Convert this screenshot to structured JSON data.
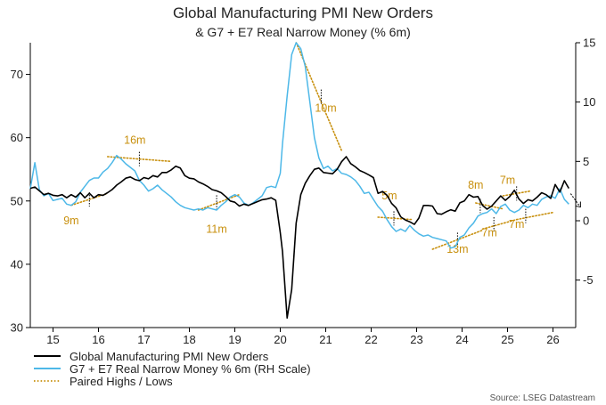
{
  "chart_data": {
    "type": "line",
    "title": "Global Manufacturing PMI New Orders",
    "subtitle": "& G7 + E7 Real Narrow Money (% 6m)",
    "source": "Source: LSEG Datastream",
    "x_axis": {
      "range": [
        2014.5,
        2026.5
      ],
      "tick_labels": [
        "15",
        "16",
        "17",
        "18",
        "19",
        "20",
        "21",
        "22",
        "23",
        "24",
        "25",
        "26"
      ],
      "tick_values": [
        2015,
        2016,
        2017,
        2018,
        2019,
        2020,
        2021,
        2022,
        2023,
        2024,
        2025,
        2026
      ]
    },
    "y_left": {
      "range": [
        30,
        75
      ],
      "ticks": [
        30,
        40,
        50,
        60,
        70
      ]
    },
    "y_right": {
      "range": [
        -9,
        15
      ],
      "ticks": [
        -5,
        0,
        5,
        10,
        15
      ]
    },
    "legend_position": "bottom-left",
    "series": [
      {
        "name": "Global Manufacturing PMI New Orders",
        "axis": "left",
        "color": "#000000",
        "style": "solid",
        "points": [
          [
            2014.5,
            52.0
          ],
          [
            2014.6,
            52.2
          ],
          [
            2014.7,
            51.6
          ],
          [
            2014.8,
            51.0
          ],
          [
            2014.9,
            51.2
          ],
          [
            2015.0,
            50.9
          ],
          [
            2015.1,
            50.8
          ],
          [
            2015.2,
            51.0
          ],
          [
            2015.3,
            50.5
          ],
          [
            2015.4,
            51.0
          ],
          [
            2015.5,
            50.6
          ],
          [
            2015.6,
            51.3
          ],
          [
            2015.7,
            50.5
          ],
          [
            2015.8,
            51.2
          ],
          [
            2015.9,
            50.5
          ],
          [
            2016.0,
            51.0
          ],
          [
            2016.1,
            50.9
          ],
          [
            2016.2,
            51.3
          ],
          [
            2016.3,
            51.8
          ],
          [
            2016.4,
            52.5
          ],
          [
            2016.5,
            53.0
          ],
          [
            2016.6,
            53.6
          ],
          [
            2016.7,
            53.8
          ],
          [
            2016.8,
            53.4
          ],
          [
            2016.9,
            53.2
          ],
          [
            2017.0,
            53.7
          ],
          [
            2017.1,
            53.5
          ],
          [
            2017.2,
            54.0
          ],
          [
            2017.3,
            53.8
          ],
          [
            2017.4,
            54.5
          ],
          [
            2017.5,
            54.5
          ],
          [
            2017.6,
            54.9
          ],
          [
            2017.7,
            55.5
          ],
          [
            2017.8,
            55.2
          ],
          [
            2017.9,
            54.0
          ],
          [
            2018.0,
            53.6
          ],
          [
            2018.1,
            53.5
          ],
          [
            2018.2,
            53.0
          ],
          [
            2018.3,
            52.7
          ],
          [
            2018.4,
            52.3
          ],
          [
            2018.5,
            51.8
          ],
          [
            2018.6,
            51.6
          ],
          [
            2018.7,
            51.3
          ],
          [
            2018.8,
            50.7
          ],
          [
            2018.9,
            50.0
          ],
          [
            2019.0,
            49.8
          ],
          [
            2019.1,
            49.2
          ],
          [
            2019.2,
            49.5
          ],
          [
            2019.3,
            49.3
          ],
          [
            2019.4,
            49.6
          ],
          [
            2019.5,
            49.9
          ],
          [
            2019.6,
            50.2
          ],
          [
            2019.7,
            50.3
          ],
          [
            2019.8,
            50.5
          ],
          [
            2019.9,
            50.1
          ],
          [
            2020.0,
            45.0
          ],
          [
            2020.05,
            42.0
          ],
          [
            2020.15,
            31.5
          ],
          [
            2020.25,
            36.0
          ],
          [
            2020.35,
            46.5
          ],
          [
            2020.45,
            51.0
          ],
          [
            2020.55,
            52.8
          ],
          [
            2020.65,
            54.0
          ],
          [
            2020.75,
            55.0
          ],
          [
            2020.85,
            55.2
          ],
          [
            2020.95,
            54.5
          ],
          [
            2021.05,
            54.4
          ],
          [
            2021.15,
            54.3
          ],
          [
            2021.25,
            55.0
          ],
          [
            2021.35,
            56.2
          ],
          [
            2021.45,
            57.0
          ],
          [
            2021.55,
            55.9
          ],
          [
            2021.65,
            55.4
          ],
          [
            2021.75,
            54.8
          ],
          [
            2021.85,
            54.5
          ],
          [
            2021.95,
            54.1
          ],
          [
            2022.05,
            53.7
          ],
          [
            2022.15,
            51.2
          ],
          [
            2022.25,
            51.5
          ],
          [
            2022.35,
            50.9
          ],
          [
            2022.45,
            49.6
          ],
          [
            2022.55,
            48.9
          ],
          [
            2022.65,
            47.5
          ],
          [
            2022.75,
            47.0
          ],
          [
            2022.85,
            46.7
          ],
          [
            2022.95,
            46.3
          ],
          [
            2023.05,
            47.3
          ],
          [
            2023.15,
            49.3
          ],
          [
            2023.25,
            49.3
          ],
          [
            2023.35,
            49.2
          ],
          [
            2023.45,
            48.0
          ],
          [
            2023.55,
            47.9
          ],
          [
            2023.65,
            48.3
          ],
          [
            2023.75,
            48.6
          ],
          [
            2023.85,
            48.4
          ],
          [
            2023.95,
            49.7
          ],
          [
            2024.05,
            50.0
          ],
          [
            2024.15,
            51.0
          ],
          [
            2024.25,
            50.6
          ],
          [
            2024.35,
            50.7
          ],
          [
            2024.45,
            49.3
          ],
          [
            2024.55,
            48.7
          ],
          [
            2024.65,
            49.2
          ],
          [
            2024.75,
            50.0
          ],
          [
            2024.85,
            50.8
          ],
          [
            2024.95,
            50.1
          ],
          [
            2025.05,
            50.7
          ],
          [
            2025.15,
            51.7
          ],
          [
            2025.25,
            50.3
          ],
          [
            2025.35,
            49.6
          ],
          [
            2025.45,
            50.2
          ],
          [
            2025.55,
            50.0
          ],
          [
            2025.65,
            50.6
          ],
          [
            2025.75,
            51.3
          ],
          [
            2025.85,
            51.0
          ],
          [
            2025.95,
            50.4
          ],
          [
            2026.05,
            52.6
          ],
          [
            2026.15,
            51.4
          ],
          [
            2026.25,
            53.2
          ],
          [
            2026.35,
            52.0
          ]
        ]
      },
      {
        "name": "G7 + E7 Real Narrow Money % 6m (RH Scale)",
        "axis": "right",
        "color": "#4db8e8",
        "style": "solid",
        "points": [
          [
            2014.5,
            2.7
          ],
          [
            2014.6,
            4.9
          ],
          [
            2014.7,
            2.6
          ],
          [
            2014.8,
            2.1
          ],
          [
            2014.9,
            2.3
          ],
          [
            2015.0,
            1.7
          ],
          [
            2015.1,
            1.8
          ],
          [
            2015.2,
            1.9
          ],
          [
            2015.3,
            1.4
          ],
          [
            2015.4,
            1.3
          ],
          [
            2015.5,
            1.6
          ],
          [
            2015.6,
            2.4
          ],
          [
            2015.7,
            2.9
          ],
          [
            2015.8,
            3.4
          ],
          [
            2015.9,
            3.6
          ],
          [
            2016.0,
            3.6
          ],
          [
            2016.1,
            4.1
          ],
          [
            2016.2,
            4.4
          ],
          [
            2016.3,
            4.9
          ],
          [
            2016.4,
            5.5
          ],
          [
            2016.5,
            5.2
          ],
          [
            2016.6,
            4.8
          ],
          [
            2016.7,
            4.5
          ],
          [
            2016.8,
            4.2
          ],
          [
            2016.9,
            3.4
          ],
          [
            2017.0,
            3.0
          ],
          [
            2017.1,
            2.5
          ],
          [
            2017.2,
            2.7
          ],
          [
            2017.3,
            3.0
          ],
          [
            2017.4,
            2.6
          ],
          [
            2017.5,
            2.3
          ],
          [
            2017.6,
            2.0
          ],
          [
            2017.7,
            1.6
          ],
          [
            2017.8,
            1.3
          ],
          [
            2017.9,
            1.1
          ],
          [
            2018.0,
            1.0
          ],
          [
            2018.1,
            0.9
          ],
          [
            2018.2,
            1.0
          ],
          [
            2018.3,
            0.9
          ],
          [
            2018.4,
            1.1
          ],
          [
            2018.5,
            1.0
          ],
          [
            2018.6,
            0.9
          ],
          [
            2018.7,
            1.3
          ],
          [
            2018.8,
            1.6
          ],
          [
            2018.9,
            2.0
          ],
          [
            2019.0,
            2.2
          ],
          [
            2019.1,
            2.0
          ],
          [
            2019.2,
            1.5
          ],
          [
            2019.3,
            1.3
          ],
          [
            2019.4,
            1.5
          ],
          [
            2019.5,
            1.8
          ],
          [
            2019.6,
            2.1
          ],
          [
            2019.7,
            2.8
          ],
          [
            2019.8,
            2.9
          ],
          [
            2019.9,
            2.8
          ],
          [
            2020.0,
            4.0
          ],
          [
            2020.05,
            6.5
          ],
          [
            2020.15,
            10.5
          ],
          [
            2020.25,
            14.0
          ],
          [
            2020.35,
            15.0
          ],
          [
            2020.45,
            14.5
          ],
          [
            2020.55,
            13.0
          ],
          [
            2020.65,
            10.0
          ],
          [
            2020.75,
            7.0
          ],
          [
            2020.85,
            5.3
          ],
          [
            2020.95,
            4.4
          ],
          [
            2021.05,
            4.6
          ],
          [
            2021.15,
            4.2
          ],
          [
            2021.25,
            4.4
          ],
          [
            2021.35,
            4.0
          ],
          [
            2021.45,
            3.9
          ],
          [
            2021.55,
            3.7
          ],
          [
            2021.65,
            3.4
          ],
          [
            2021.75,
            2.9
          ],
          [
            2021.85,
            2.3
          ],
          [
            2021.95,
            2.4
          ],
          [
            2022.05,
            1.8
          ],
          [
            2022.15,
            1.2
          ],
          [
            2022.25,
            0.8
          ],
          [
            2022.35,
            0.1
          ],
          [
            2022.45,
            -0.5
          ],
          [
            2022.55,
            -0.9
          ],
          [
            2022.65,
            -0.7
          ],
          [
            2022.75,
            -0.9
          ],
          [
            2022.85,
            -0.4
          ],
          [
            2022.95,
            -0.8
          ],
          [
            2023.05,
            -1.1
          ],
          [
            2023.15,
            -1.3
          ],
          [
            2023.25,
            -1.2
          ],
          [
            2023.35,
            -1.4
          ],
          [
            2023.45,
            -1.5
          ],
          [
            2023.55,
            -1.6
          ],
          [
            2023.65,
            -1.7
          ],
          [
            2023.75,
            -2.3
          ],
          [
            2023.85,
            -2.2
          ],
          [
            2023.95,
            -1.4
          ],
          [
            2024.05,
            -1.2
          ],
          [
            2024.15,
            -0.6
          ],
          [
            2024.25,
            -0.2
          ],
          [
            2024.35,
            0.4
          ],
          [
            2024.45,
            0.6
          ],
          [
            2024.55,
            0.7
          ],
          [
            2024.65,
            1.0
          ],
          [
            2024.75,
            0.6
          ],
          [
            2024.85,
            1.2
          ],
          [
            2024.95,
            1.4
          ],
          [
            2025.05,
            0.9
          ],
          [
            2025.15,
            0.7
          ],
          [
            2025.25,
            0.9
          ],
          [
            2025.35,
            1.3
          ],
          [
            2025.45,
            1.1
          ],
          [
            2025.55,
            1.4
          ],
          [
            2025.65,
            1.3
          ],
          [
            2025.75,
            1.8
          ],
          [
            2025.85,
            2.0
          ],
          [
            2025.95,
            2.1
          ],
          [
            2026.05,
            1.9
          ],
          [
            2026.15,
            2.7
          ],
          [
            2026.25,
            1.8
          ],
          [
            2026.35,
            1.4
          ]
        ]
      },
      {
        "name": "Paired Highs / Lows",
        "color": "#c8900e",
        "style": "dotted",
        "pairs": [
          {
            "label": "9m",
            "from": [
              2015.4,
              1.3
            ],
            "to": [
              2016.2,
              2.3
            ],
            "axis": "right",
            "label_pos": [
              2015.4,
              0.0
            ],
            "marker_x": 2015.8
          },
          {
            "label": "16m",
            "from": [
              2016.2,
              5.4
            ],
            "to": [
              2017.6,
              5.0
            ],
            "axis": "right",
            "label_pos": [
              2016.8,
              6.8
            ],
            "marker_x": 2016.9
          },
          {
            "label": "11m",
            "from": [
              2018.2,
              0.9
            ],
            "to": [
              2019.1,
              2.2
            ],
            "axis": "right",
            "label_pos": [
              2018.6,
              -0.7
            ],
            "marker_x": 2018.6
          },
          {
            "label": "10m",
            "from": [
              2020.35,
              15.0
            ],
            "to": [
              2021.35,
              5.9
            ],
            "axis": "right",
            "label_pos": [
              2021.0,
              9.5
            ],
            "marker_x": 2020.9
          },
          {
            "label": "5m",
            "from": [
              2022.15,
              0.3
            ],
            "to": [
              2022.9,
              0.1
            ],
            "axis": "right",
            "label_pos": [
              2022.4,
              2.1
            ],
            "marker_x": 2022.5
          },
          {
            "label": "13m",
            "from": [
              2023.35,
              -2.4
            ],
            "to": [
              2024.45,
              -0.8
            ],
            "axis": "right",
            "label_pos": [
              2023.9,
              -2.4
            ],
            "marker_x": 2023.9
          },
          {
            "label": "8m",
            "from": [
              2024.3,
              1.5
            ],
            "to": [
              2024.9,
              1.0
            ],
            "axis": "right",
            "label_pos": [
              2024.3,
              3.0
            ],
            "marker_x": 2024.4
          },
          {
            "label": "7m",
            "from": [
              2024.45,
              -0.7
            ],
            "to": [
              2025.2,
              0.1
            ],
            "axis": "right",
            "label_pos": [
              2024.6,
              -1.0
            ],
            "marker_x": 2024.7
          },
          {
            "label": "7m",
            "from": [
              2024.9,
              2.1
            ],
            "to": [
              2025.5,
              2.5
            ],
            "axis": "right",
            "label_pos": [
              2025.0,
              3.4
            ],
            "marker_x": 2025.2
          },
          {
            "label": "7m",
            "from": [
              2025.2,
              0.1
            ],
            "to": [
              2026.0,
              0.7
            ],
            "axis": "right",
            "label_pos": [
              2025.2,
              -0.3
            ],
            "marker_x": 2025.4
          }
        ]
      }
    ]
  }
}
